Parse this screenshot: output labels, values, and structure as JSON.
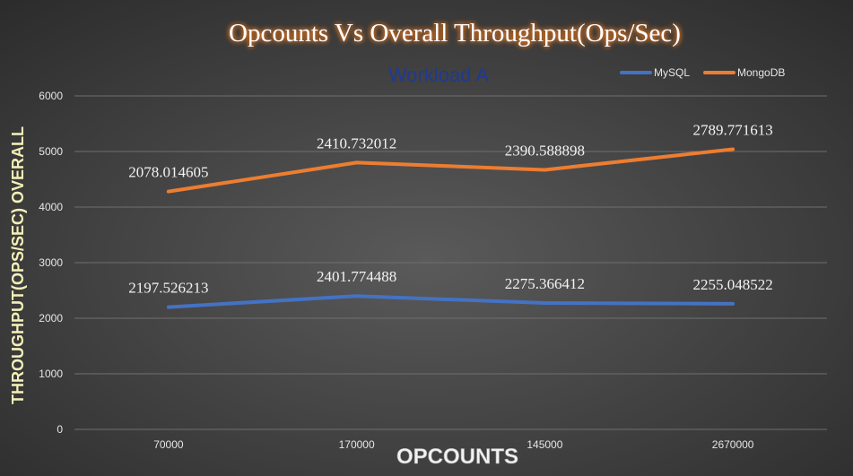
{
  "chart_data": {
    "type": "line",
    "title": "Opcounts Vs Overall Throughput(Ops/Sec)",
    "subtitle": "Workload A",
    "xlabel": "OPCOUNTS",
    "ylabel": "THROUGHPUT(OPS/SEC) OVERALL",
    "categories": [
      "70000",
      "170000",
      "145000",
      "2670000"
    ],
    "ylim": [
      0,
      6000
    ],
    "yticks": [
      0,
      1000,
      2000,
      3000,
      4000,
      5000,
      6000
    ],
    "grid": true,
    "legend_position": "top-right",
    "series": [
      {
        "name": "MySQL",
        "color": "#4472C4",
        "values": [
          2200,
          2400,
          2275,
          2260
        ],
        "data_labels": [
          "2197.526213",
          "2401.774488",
          "2275.366412",
          "2255.048522"
        ]
      },
      {
        "name": "MongoDB",
        "color": "#ED7D31",
        "values": [
          4280,
          4800,
          4670,
          5040
        ],
        "data_labels": [
          "2078.014605",
          "2410.732012",
          "2390.588898",
          "2789.771613"
        ]
      }
    ]
  },
  "colors": {
    "background_center": "#5a5a5a",
    "background_edge": "#2b2b2b",
    "title_text": "#ffffff",
    "title_glow": "#e87722",
    "subtitle_text": "#1f3a93",
    "ylabel_text": "#f3f0b8",
    "grid": "#6f6f6f"
  }
}
